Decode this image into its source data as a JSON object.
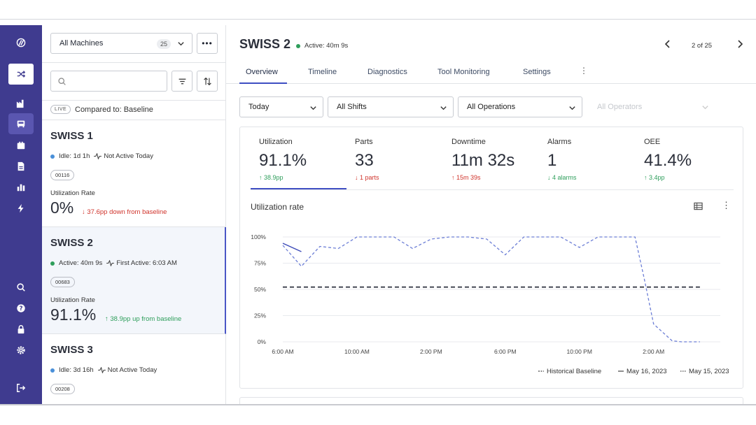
{
  "sidebar_icons": [
    "logo-icon",
    "shuffle-icon",
    "factory-icon",
    "machines-icon",
    "calendar-icon",
    "report-icon",
    "analytics-icon",
    "bolt-icon",
    "search-icon",
    "help-icon",
    "lock-icon",
    "gear-icon",
    "logout-icon"
  ],
  "list": {
    "machine_filter": "All Machines",
    "machine_count": "25",
    "live_badge": "LIVE",
    "compared_to": "Compared to: Baseline",
    "cards": [
      {
        "name": "SWISS 1",
        "status": "Idle: 1d 1h",
        "status_color": "#4a90d9",
        "activity": "Not Active Today",
        "tag": "00116",
        "rate_label": "Utilization Rate",
        "rate": "0%",
        "delta": "37.6pp down from baseline",
        "delta_color": "#d0342c",
        "active": false
      },
      {
        "name": "SWISS 2",
        "status": "Active: 40m 9s",
        "status_color": "#2e9e5b",
        "activity": "First Active: 6:03 AM",
        "tag": "00683",
        "rate_label": "Utilization Rate",
        "rate": "91.1%",
        "delta": "38.9pp up from baseline",
        "delta_color": "#2e9e5b",
        "active": true
      },
      {
        "name": "SWISS 3",
        "status": "Idle: 3d 16h",
        "status_color": "#4a90d9",
        "activity": "Not Active Today",
        "tag": "00208",
        "active": false
      }
    ]
  },
  "header": {
    "title": "SWISS 2",
    "status": "Active: 40m 9s",
    "pager": "2 of 25"
  },
  "tabs": [
    "Overview",
    "Timeline",
    "Diagnostics",
    "Tool Monitoring",
    "Settings"
  ],
  "filters": {
    "date": "Today",
    "shifts": "All Shifts",
    "operations": "All Operations",
    "operators": "All Operators"
  },
  "kpis": [
    {
      "label": "Utilization",
      "value": "91.1%",
      "delta": "38.9pp",
      "dir": "up",
      "color": "#2e9e5b"
    },
    {
      "label": "Parts",
      "value": "33",
      "delta": "1 parts",
      "dir": "down",
      "color": "#d0342c"
    },
    {
      "label": "Downtime",
      "value": "11m 32s",
      "delta": "15m 39s",
      "dir": "up",
      "color": "#d0342c"
    },
    {
      "label": "Alarms",
      "value": "1",
      "delta": "4 alarms",
      "dir": "down",
      "color": "#2e9e5b"
    },
    {
      "label": "OEE",
      "value": "41.4%",
      "delta": "3.4pp",
      "dir": "up",
      "color": "#2e9e5b"
    }
  ],
  "chart_title": "Utilization rate",
  "chart_data": {
    "type": "line",
    "x_tick_labels": [
      "6:00 AM",
      "10:00 AM",
      "2:00 PM",
      "6:00 PM",
      "10:00 PM",
      "2:00 AM"
    ],
    "y_tick_labels": [
      "100%",
      "75%",
      "50%",
      "25%",
      "0%"
    ],
    "ylim": [
      0,
      100
    ],
    "x_unit": "hours since 6:00 AM",
    "xlim": [
      0,
      23.6
    ],
    "series": [
      {
        "name": "Historical Baseline",
        "style": "dashed",
        "color": "#3a3f4b",
        "x": [
          0,
          22.5
        ],
        "y": [
          52.2,
          52.2
        ]
      },
      {
        "name": "May 16, 2023",
        "style": "solid",
        "color": "#3d4bb8",
        "x": [
          0,
          1
        ],
        "y": [
          94,
          86
        ]
      },
      {
        "name": "May 15, 2023",
        "style": "dotted",
        "color": "#6d7fd6",
        "x": [
          0,
          1,
          2,
          3,
          4,
          5,
          6,
          7,
          8,
          9,
          10,
          11,
          12,
          13,
          14,
          15,
          16,
          17,
          18,
          19,
          19.5,
          20,
          21,
          21.5,
          22,
          22.5
        ],
        "y": [
          92,
          72,
          91,
          89,
          100,
          100,
          100,
          89,
          98,
          100,
          100,
          98,
          83,
          100,
          100,
          100,
          90,
          100,
          100,
          100,
          60,
          17,
          1,
          0,
          0,
          0
        ]
      }
    ],
    "legend": [
      "Historical Baseline",
      "May 16, 2023",
      "May 15, 2023"
    ]
  }
}
